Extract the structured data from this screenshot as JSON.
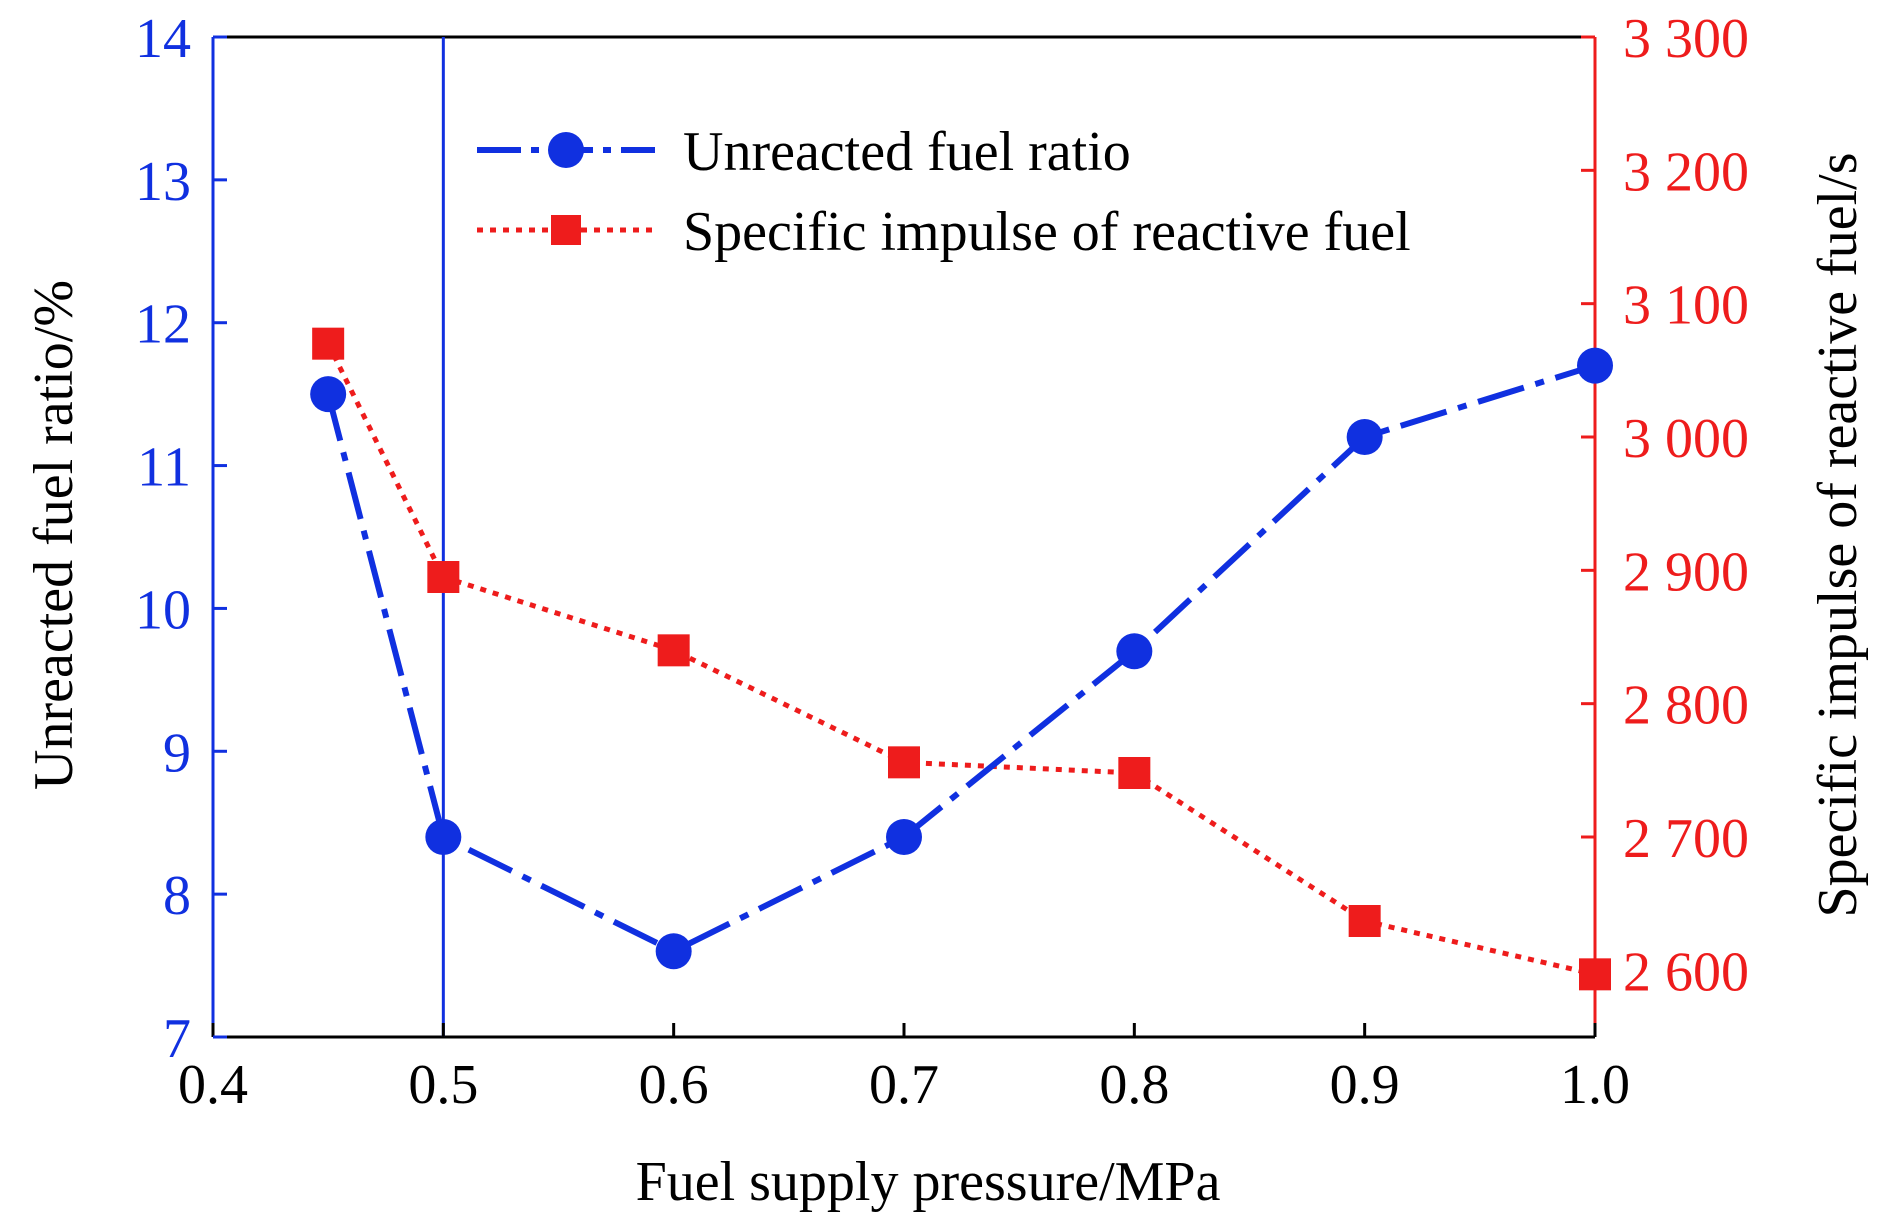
{
  "chart_data": {
    "type": "line",
    "xlabel": "Fuel supply pressure/MPa",
    "ylabel_left": "Unreacted fuel ratio/%",
    "ylabel_right": "Specific impulse of reactive fuel/s",
    "xlim": [
      0.4,
      1.0
    ],
    "ylim_left": [
      7,
      14
    ],
    "ylim_right": [
      2550,
      3300
    ],
    "x_ticks": [
      "0.4",
      "0.5",
      "0.6",
      "0.7",
      "0.8",
      "0.9",
      "1.0"
    ],
    "y_left_ticks": [
      "7",
      "8",
      "9",
      "10",
      "11",
      "12",
      "13",
      "14"
    ],
    "y_right_ticks": [
      "2 600",
      "2 700",
      "2 800",
      "2 900",
      "3 000",
      "3 100",
      "3 200",
      "3 300"
    ],
    "reference_line_x": 0.5,
    "legend_position": "top-center",
    "grid": false,
    "series": [
      {
        "name": "Unreacted fuel ratio",
        "axis": "left",
        "color": "#1030e0",
        "marker": "circle",
        "line_style": "dash-dot",
        "x": [
          0.45,
          0.5,
          0.6,
          0.7,
          0.8,
          0.9,
          1.0
        ],
        "y": [
          11.5,
          8.4,
          7.6,
          8.4,
          9.7,
          11.2,
          11.7
        ]
      },
      {
        "name": "Specific impulse of reactive fuel",
        "axis": "right",
        "color": "#ee1c1c",
        "marker": "square",
        "line_style": "dotted",
        "x": [
          0.45,
          0.5,
          0.6,
          0.7,
          0.8,
          0.9,
          1.0
        ],
        "y": [
          3070,
          2895,
          2840,
          2756,
          2748,
          2637,
          2597
        ]
      }
    ]
  }
}
